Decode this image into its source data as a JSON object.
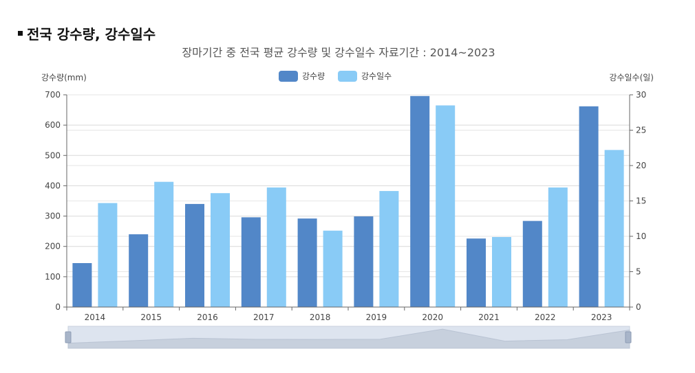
{
  "section": {
    "title": "전국 강수량, 강수일수"
  },
  "chart_data": {
    "type": "bar",
    "title": "장마기간 중 전국 평균 강수량 및 강수일수 자료기간 : 2014~2023",
    "categories": [
      "2014",
      "2015",
      "2016",
      "2017",
      "2018",
      "2019",
      "2020",
      "2021",
      "2022",
      "2023"
    ],
    "series": [
      {
        "name": "강수량",
        "axis": "left",
        "color": "#5287c8",
        "values": [
          145,
          240,
          340,
          296,
          292,
          299,
          696,
          226,
          284,
          662
        ]
      },
      {
        "name": "강수일수",
        "axis": "right",
        "color": "#89cbf6",
        "values": [
          14.7,
          17.7,
          16.1,
          16.9,
          10.8,
          16.4,
          28.5,
          9.9,
          16.9,
          22.2
        ]
      }
    ],
    "ylabel_left": "강수량(mm)",
    "ylabel_right": "강수일수(일)",
    "ylim_left": [
      0,
      700
    ],
    "yticks_left": [
      "0",
      "100",
      "200",
      "300",
      "400",
      "500",
      "600",
      "700"
    ],
    "ylim_right": [
      0,
      30
    ],
    "yticks_right": [
      "0",
      "5",
      "10",
      "15",
      "20",
      "25",
      "30"
    ],
    "grid": true,
    "legend": "top-center",
    "datazoom_slider": true
  }
}
